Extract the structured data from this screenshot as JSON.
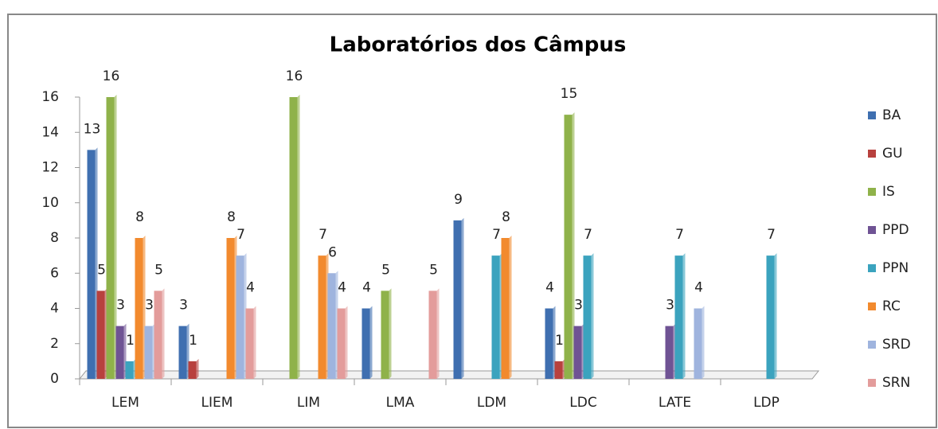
{
  "chart_data": {
    "type": "bar",
    "title": "Laboratórios dos Câmpus",
    "categories": [
      "LEM",
      "LIEM",
      "LIM",
      "LMA",
      "LDM",
      "LDC",
      "LATE",
      "LDP"
    ],
    "series": [
      {
        "name": "BA",
        "color": "#3f6fb0",
        "values": [
          13,
          3,
          null,
          4,
          9,
          4,
          null,
          null
        ]
      },
      {
        "name": "GU",
        "color": "#b8413e",
        "values": [
          5,
          1,
          null,
          null,
          null,
          1,
          null,
          null
        ]
      },
      {
        "name": "IS",
        "color": "#8fb24a",
        "values": [
          16,
          null,
          16,
          5,
          null,
          15,
          null,
          null
        ]
      },
      {
        "name": "PPD",
        "color": "#6f5394",
        "values": [
          3,
          null,
          null,
          null,
          null,
          3,
          3,
          null
        ]
      },
      {
        "name": "PPN",
        "color": "#3ba3be",
        "values": [
          1,
          null,
          null,
          null,
          7,
          7,
          7,
          7
        ]
      },
      {
        "name": "RC",
        "color": "#f28a2e",
        "values": [
          8,
          8,
          7,
          null,
          8,
          null,
          null,
          null
        ]
      },
      {
        "name": "SRD",
        "color": "#9fb4de",
        "values": [
          3,
          7,
          6,
          null,
          null,
          null,
          4,
          null
        ]
      },
      {
        "name": "SRN",
        "color": "#e39c9b",
        "values": [
          5,
          4,
          4,
          5,
          null,
          null,
          null,
          null
        ]
      }
    ],
    "ylim": [
      0,
      16
    ],
    "yticks": [
      0,
      2,
      4,
      6,
      8,
      10,
      12,
      14,
      16
    ],
    "legend": "right"
  }
}
